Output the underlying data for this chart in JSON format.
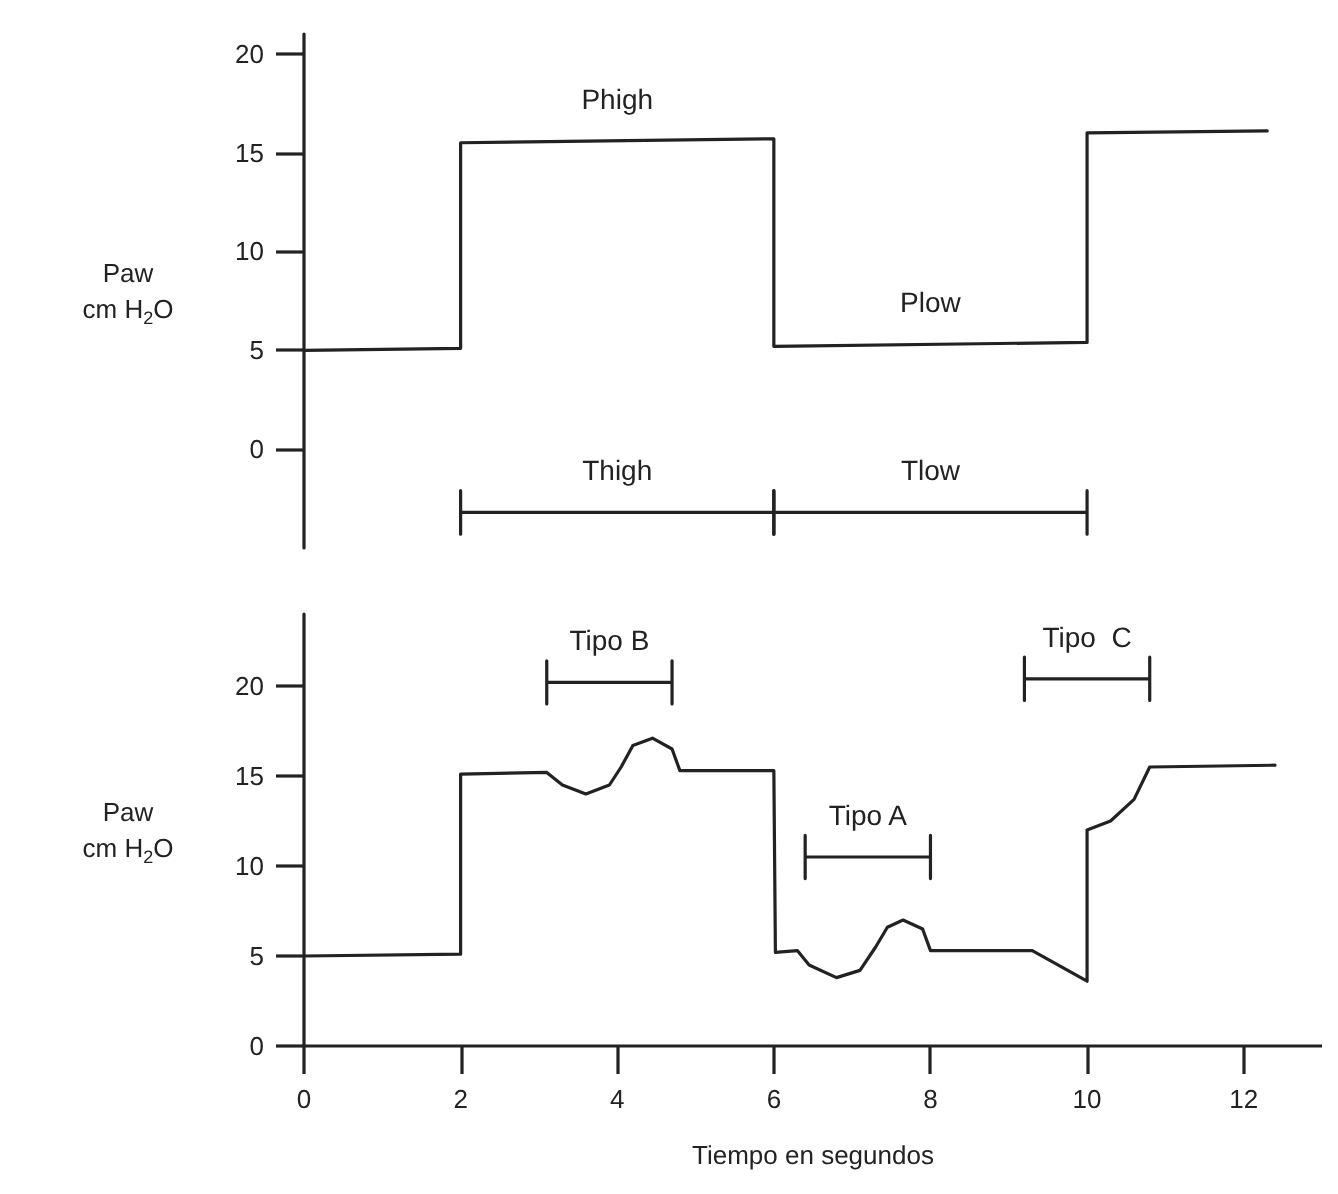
{
  "chart_data": [
    {
      "type": "line",
      "ylabel": "Paw\ncm H$_{2}$O",
      "xlim": [
        0,
        13
      ],
      "ylim": [
        -5,
        21
      ],
      "yticks": [
        0,
        5,
        10,
        15,
        20
      ],
      "tick_labels": "y",
      "grid": false,
      "marker": "none",
      "line_style": "solid",
      "series": [
        {
          "color": "#222222",
          "x": [
            0,
            2,
            2,
            6,
            6,
            10,
            10,
            12.3
          ],
          "values": [
            5,
            5.1,
            15.5,
            15.7,
            5.2,
            5.4,
            16,
            16.1
          ]
        },
        {
          "color": "#222222",
          "x": [
            2,
            2,
            2,
            6,
            6,
            6
          ],
          "values": [
            -2.1,
            -4.3,
            -3.2,
            -3.2,
            -2.1,
            -4.3
          ]
        },
        {
          "color": "#222222",
          "x": [
            6,
            6,
            6,
            10,
            10,
            10
          ],
          "values": [
            -2.1,
            -4.3,
            -3.2,
            -3.2,
            -2.1,
            -4.3
          ]
        }
      ],
      "annotations": [
        {
          "text": "Thigh",
          "x": 4,
          "y": -3.2
        },
        {
          "text": "Tlow",
          "x": 8,
          "y": -3.2
        },
        {
          "text": "Phigh",
          "x": 4,
          "y": 15.6
        },
        {
          "text": "Plow",
          "x": 8,
          "y": 5.3
        }
      ]
    },
    {
      "type": "line",
      "xlabel": "Tiempo en segundos",
      "ylabel": "Paw\ncm H$_{2}$O",
      "xlim": [
        0,
        13
      ],
      "ylim": [
        0,
        24
      ],
      "xticks": [
        0,
        2,
        4,
        6,
        8,
        10,
        12
      ],
      "yticks": [
        0,
        5,
        10,
        15,
        20
      ],
      "grid": false,
      "marker": "none",
      "line_style": "solid",
      "series": [
        {
          "color": "#222222",
          "x": [
            0,
            2,
            2,
            3.1,
            3.3,
            3.6,
            3.9,
            4.05,
            4.2,
            4.45,
            4.7,
            4.8,
            6,
            6.02,
            6.3,
            6.45,
            6.8,
            7.1,
            7.3,
            7.45,
            7.65,
            7.9,
            8,
            9.3,
            10,
            10,
            10.3,
            10.6,
            10.8,
            12.4
          ],
          "values": [
            5,
            5.1,
            15.1,
            15.2,
            14.5,
            14,
            14.5,
            15.5,
            16.7,
            17.1,
            16.5,
            15.3,
            15.3,
            5.2,
            5.3,
            4.5,
            3.8,
            4.2,
            5.5,
            6.6,
            7,
            6.5,
            5.3,
            5.3,
            3.6,
            12,
            12.5,
            13.7,
            15.5,
            15.6
          ]
        },
        {
          "color": "#222222",
          "x": [
            3.1,
            3.1,
            3.1,
            4.7,
            4.7,
            4.7
          ],
          "values": [
            21.4,
            19,
            20.2,
            20.2,
            21.4,
            19
          ]
        },
        {
          "color": "#222222",
          "x": [
            6.4,
            6.4,
            6.4,
            8,
            8,
            8
          ],
          "values": [
            11.7,
            9.3,
            10.5,
            10.5,
            11.7,
            9.3
          ]
        },
        {
          "color": "#222222",
          "x": [
            9.2,
            9.2,
            9.2,
            10.8,
            10.8,
            10.8
          ],
          "values": [
            21.6,
            19.2,
            20.4,
            20.4,
            21.6,
            19.2
          ]
        }
      ],
      "annotations": [
        {
          "text": "Tipo B",
          "x": 3.9,
          "y": 20.2
        },
        {
          "text": "Tipo A",
          "x": 7.2,
          "y": 10.5
        },
        {
          "text": "Tipo  C",
          "x": 10,
          "y": 20.4
        }
      ]
    }
  ]
}
